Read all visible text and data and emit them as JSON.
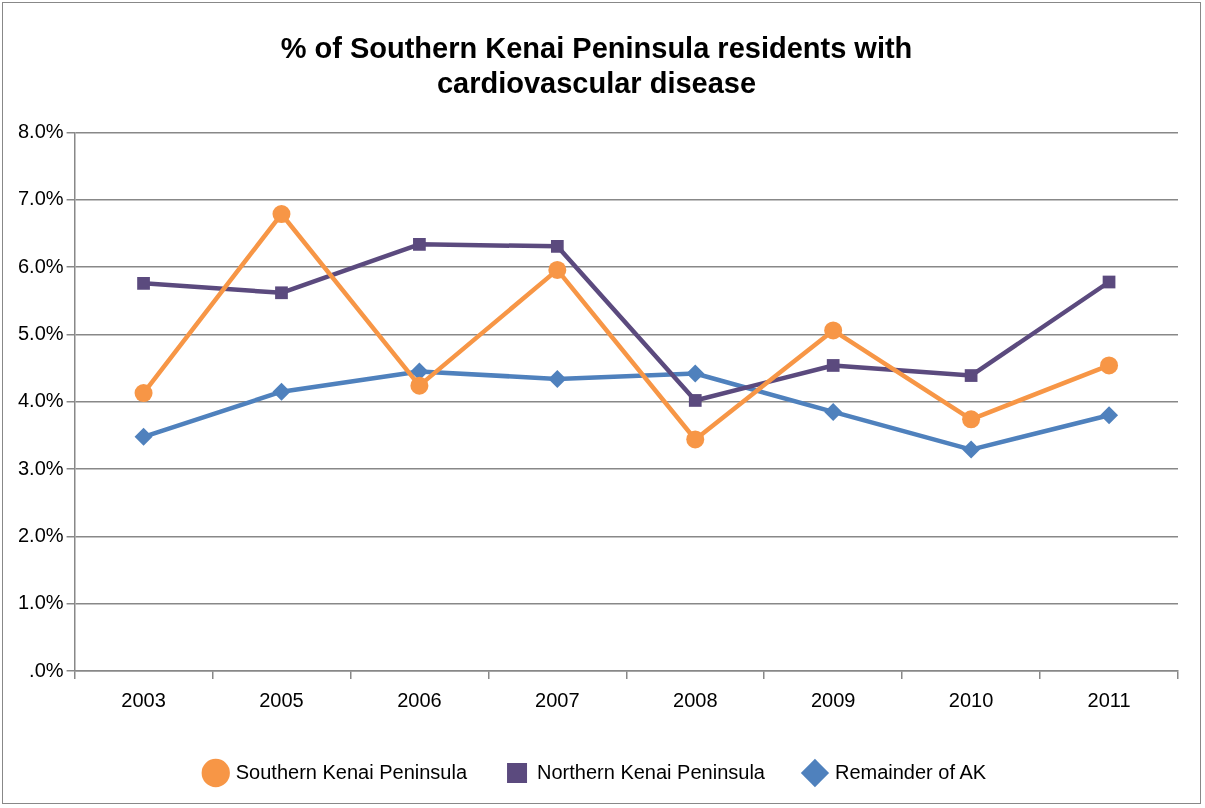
{
  "chart_data": {
    "type": "line",
    "title": "% of Southern Kenai Peninsula residents with cardiovascular disease",
    "categories": [
      "2003",
      "2005",
      "2006",
      "2007",
      "2008",
      "2009",
      "2010",
      "2011"
    ],
    "series": [
      {
        "name": "Southern Kenai Peninsula",
        "color": "#f79646",
        "marker": "circle",
        "values": [
          4.13,
          6.79,
          4.24,
          5.96,
          3.44,
          5.06,
          3.74,
          4.54
        ]
      },
      {
        "name": "Northern Kenai Peninsula",
        "color": "#5b4a7e",
        "marker": "square",
        "values": [
          5.76,
          5.62,
          6.34,
          6.31,
          4.02,
          4.54,
          4.39,
          5.78
        ]
      },
      {
        "name": "Remainder of AK",
        "color": "#4f81bd",
        "marker": "diamond",
        "values": [
          3.48,
          4.15,
          4.45,
          4.34,
          4.42,
          3.85,
          3.29,
          3.8
        ]
      }
    ],
    "ylim": [
      0,
      8
    ],
    "yticks": [
      {
        "value": 0,
        "label": ".0%"
      },
      {
        "value": 1,
        "label": "1.0%"
      },
      {
        "value": 2,
        "label": "2.0%"
      },
      {
        "value": 3,
        "label": "3.0%"
      },
      {
        "value": 4,
        "label": "4.0%"
      },
      {
        "value": 5,
        "label": "5.0%"
      },
      {
        "value": 6,
        "label": "6.0%"
      },
      {
        "value": 7,
        "label": "7.0%"
      },
      {
        "value": 8,
        "label": "8.0%"
      }
    ],
    "grid": "y",
    "legend": "bottom",
    "line_style": "solid"
  }
}
